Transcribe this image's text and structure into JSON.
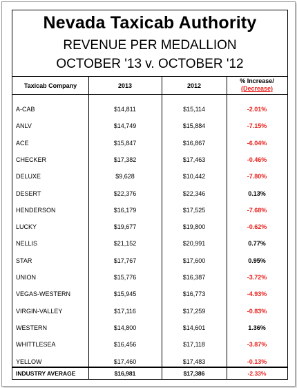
{
  "title": "Nevada Taxicab Authority",
  "subtitle1": "REVENUE PER MEDALLION",
  "subtitle2": "OCTOBER '13 v. OCTOBER '12",
  "headers": {
    "company": "Taxicab Company",
    "y2013": "2013",
    "y2012": "2012",
    "pct_top": "% Increase/",
    "pct_bottom": "(Decrease)"
  },
  "rows": [
    {
      "company": "A-CAB",
      "y2013": "$14,811",
      "y2012": "$15,114",
      "pct": "-2.01%"
    },
    {
      "company": "ANLV",
      "y2013": "$14,749",
      "y2012": "$15,884",
      "pct": "-7.15%"
    },
    {
      "company": "ACE",
      "y2013": "$15,847",
      "y2012": "$16,867",
      "pct": "-6.04%"
    },
    {
      "company": "CHECKER",
      "y2013": "$17,382",
      "y2012": "$17,463",
      "pct": "-0.46%"
    },
    {
      "company": "DELUXE",
      "y2013": "$9,628",
      "y2012": "$10,442",
      "pct": "-7.80%"
    },
    {
      "company": "DESERT",
      "y2013": "$22,376",
      "y2012": "$22,346",
      "pct": "0.13%"
    },
    {
      "company": "HENDERSON",
      "y2013": "$16,179",
      "y2012": "$17,525",
      "pct": "-7.68%"
    },
    {
      "company": "LUCKY",
      "y2013": "$19,677",
      "y2012": "$19,800",
      "pct": "-0.62%"
    },
    {
      "company": "NELLIS",
      "y2013": "$21,152",
      "y2012": "$20,991",
      "pct": "0.77%"
    },
    {
      "company": "STAR",
      "y2013": "$17,767",
      "y2012": "$17,600",
      "pct": "0.95%"
    },
    {
      "company": "UNION",
      "y2013": "$15,776",
      "y2012": "$16,387",
      "pct": "-3.72%"
    },
    {
      "company": "VEGAS-WESTERN",
      "y2013": "$15,945",
      "y2012": "$16,773",
      "pct": "-4.93%"
    },
    {
      "company": "VIRGIN-VALLEY",
      "y2013": "$17,116",
      "y2012": "$17,259",
      "pct": "-0.83%"
    },
    {
      "company": "WESTERN",
      "y2013": "$14,800",
      "y2012": "$14,601",
      "pct": "1.36%"
    },
    {
      "company": "WHITTLESEA",
      "y2013": "$16,456",
      "y2012": "$17,118",
      "pct": "-3.87%"
    },
    {
      "company": "YELLOW",
      "y2013": "$17,460",
      "y2012": "$17,483",
      "pct": "-0.13%"
    }
  ],
  "average": {
    "company": "INDUSTRY AVERAGE",
    "y2013": "$16,981",
    "y2012": "$17,386",
    "pct": "-2.33%"
  },
  "colors": {
    "negative": "#e8211c",
    "positive": "#000000"
  }
}
